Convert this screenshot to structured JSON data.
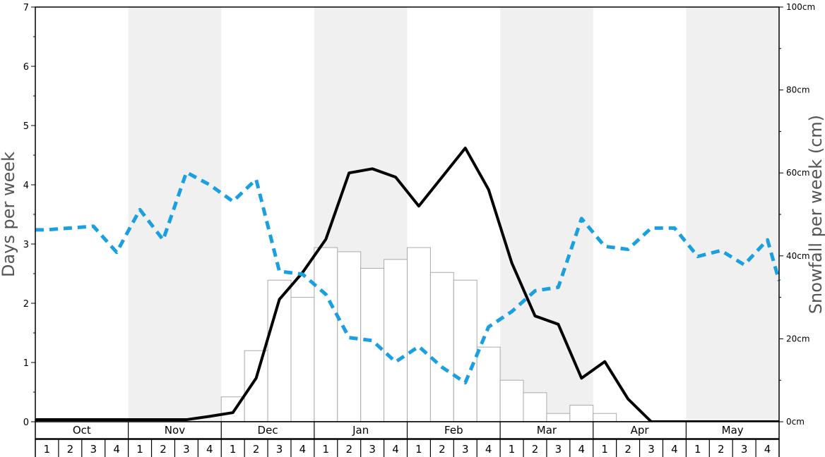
{
  "chart_data": {
    "type": "bar",
    "ylabel_left": "Days per week",
    "ylabel_right": "Snowfall per week (cm)",
    "months": [
      "Oct",
      "Nov",
      "Dec",
      "Jan",
      "Feb",
      "Mar",
      "Apr",
      "May"
    ],
    "week_labels": [
      "1",
      "2",
      "3",
      "4"
    ],
    "ylim_left": [
      0,
      7
    ],
    "ylim_right": [
      0,
      100
    ],
    "left_ticks": [
      "0",
      "1",
      "2",
      "3",
      "4",
      "5",
      "6",
      "7"
    ],
    "right_ticks": [
      "0cm",
      "20cm",
      "40cm",
      "60cm",
      "80cm",
      "100cm"
    ],
    "shaded_months": [
      "Nov",
      "Jan",
      "Mar",
      "May"
    ],
    "colors": {
      "band": "#f0f0f0",
      "snowfall_line": "#000000",
      "dashed_line": "#1a9fe0",
      "bar_fill": "#ffffff",
      "bar_stroke": "#aaaaaa"
    },
    "series": [
      {
        "type": "bar",
        "axis": "left",
        "values": [
          0,
          0,
          0,
          0,
          0,
          0,
          0,
          0,
          0.42,
          1.2,
          2.39,
          2.1,
          2.94,
          2.87,
          2.59,
          2.74,
          2.94,
          2.52,
          2.39,
          1.26,
          0.7,
          0.49,
          0.14,
          0.28,
          0.14,
          0,
          0,
          0,
          0,
          0,
          0,
          0
        ]
      },
      {
        "type": "line",
        "axis": "right",
        "style": "solid",
        "values": [
          0.5,
          0.5,
          0.5,
          0.5,
          0.5,
          0.5,
          0.5,
          1.3,
          2.2,
          10.5,
          29.5,
          36.0,
          44.0,
          60.0,
          61.0,
          59.0,
          52.0,
          59.0,
          66.0,
          56.0,
          38.3,
          25.5,
          23.5,
          10.5,
          14.5,
          5.5,
          0,
          0,
          0,
          0,
          0,
          0
        ]
      },
      {
        "type": "line",
        "axis": "left",
        "style": "dashed",
        "values": [
          3.24,
          3.27,
          3.3,
          2.86,
          3.58,
          3.07,
          4.21,
          4.0,
          3.72,
          4.09,
          2.54,
          2.49,
          2.15,
          1.42,
          1.37,
          1.01,
          1.27,
          0.92,
          0.66,
          1.6,
          1.86,
          2.21,
          2.27,
          3.43,
          2.96,
          2.91,
          3.27,
          3.27,
          2.79,
          2.89,
          2.65,
          3.07
        ]
      }
    ],
    "extra_points": {
      "dashed_end": 2.38
    }
  }
}
